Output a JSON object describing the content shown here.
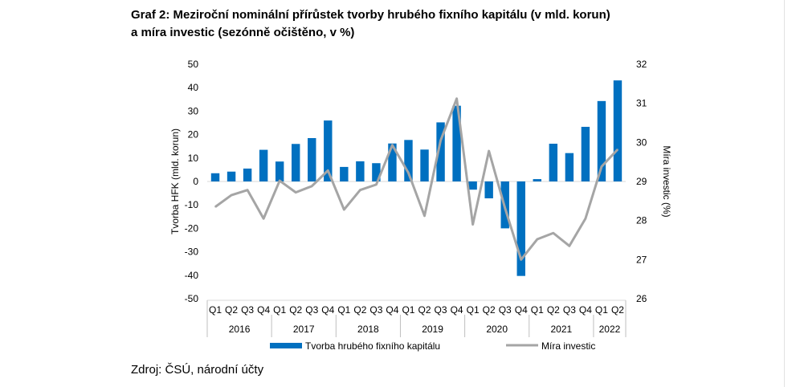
{
  "title": {
    "line1": "Graf 2: Meziroční nominální přírůstek tvorby hrubého fixního kapitálu (v mld. korun)",
    "line2": "a míra investic (sezónně očištěno, v %)"
  },
  "source": "Zdroj: ČSÚ, národní účty",
  "chart_data": {
    "type": "bar",
    "title": "Graf 2: Meziroční nominální přírůstek tvorby hrubého fixního kapitálu (v mld. korun) a míra investic (sezónně očištěno, v %)",
    "categories": [
      "Q1",
      "Q2",
      "Q3",
      "Q4",
      "Q1",
      "Q2",
      "Q3",
      "Q4",
      "Q1",
      "Q2",
      "Q3",
      "Q4",
      "Q1",
      "Q2",
      "Q3",
      "Q4",
      "Q1",
      "Q2",
      "Q3",
      "Q4",
      "Q1",
      "Q2",
      "Q3",
      "Q4",
      "Q1",
      "Q2"
    ],
    "years": [
      {
        "label": "2016",
        "span": 4
      },
      {
        "label": "2017",
        "span": 4
      },
      {
        "label": "2018",
        "span": 4
      },
      {
        "label": "2019",
        "span": 4
      },
      {
        "label": "2020",
        "span": 4
      },
      {
        "label": "2021",
        "span": 4
      },
      {
        "label": "2022",
        "span": 2
      }
    ],
    "ylabel": "Tvorba HFK (mld. korun)",
    "y2label": "Míra investic (%)",
    "ylim": [
      -50,
      50
    ],
    "y2lim": [
      26,
      32
    ],
    "yticks": [
      -50,
      -40,
      -30,
      -20,
      -10,
      0,
      10,
      20,
      30,
      40,
      50
    ],
    "y2ticks": [
      26,
      27,
      28,
      29,
      30,
      31,
      32
    ],
    "legend_position": "bottom",
    "colors": {
      "bars": "#0070c0",
      "line": "#a5a5a5"
    },
    "series": [
      {
        "name": "Tvorba hrubého fixního kapitálu",
        "type": "bar",
        "axis": "left",
        "values": [
          3.5,
          4.2,
          5.5,
          13.5,
          8.5,
          16.0,
          18.5,
          26.0,
          6.2,
          8.6,
          7.8,
          16.2,
          17.7,
          13.6,
          25.2,
          32.3,
          -3.5,
          -7.2,
          -20.0,
          -40.3,
          1.0,
          16.1,
          12.1,
          23.3,
          34.3,
          43.1
        ]
      },
      {
        "name": "Míra investic",
        "type": "line",
        "axis": "right",
        "values": [
          28.35,
          28.65,
          28.78,
          28.05,
          29.02,
          28.72,
          28.88,
          29.28,
          28.28,
          28.78,
          28.92,
          29.93,
          29.22,
          28.12,
          30.05,
          31.12,
          27.9,
          29.78,
          28.32,
          27.0,
          27.52,
          27.68,
          27.35,
          28.05,
          29.38,
          29.82
        ]
      }
    ]
  }
}
